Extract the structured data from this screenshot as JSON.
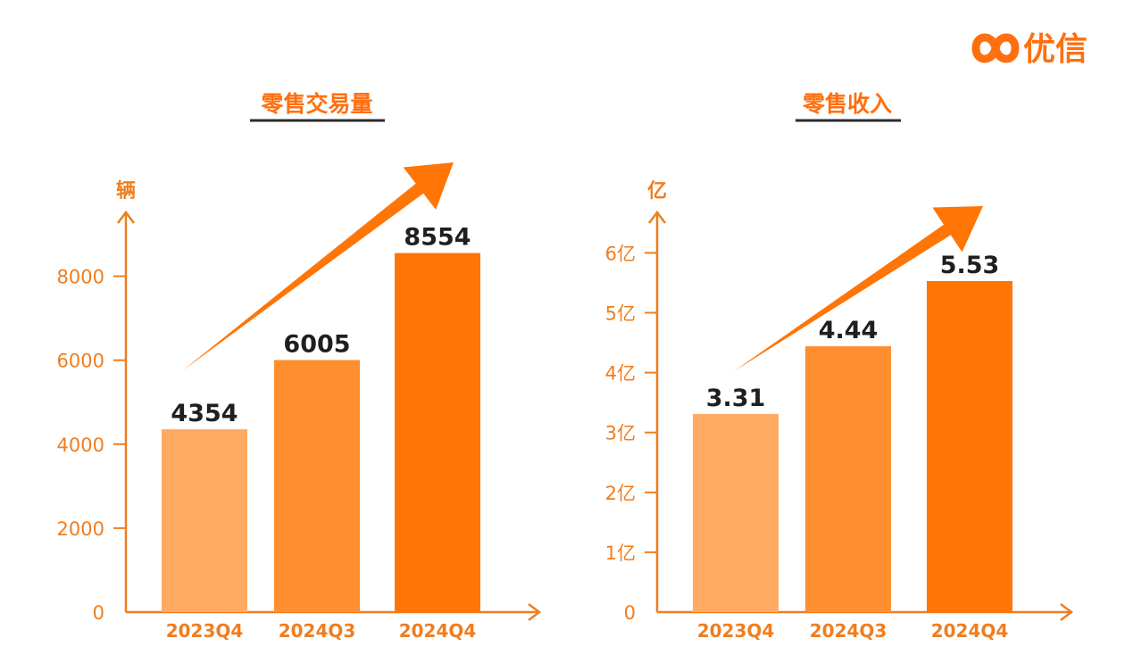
{
  "brand": {
    "name": "优信",
    "color": "#ff6f0f"
  },
  "colors": {
    "axis": "#f07d1f",
    "tick_text": "#f07d1f",
    "title_text": "#ff6f0f",
    "underline": "#2b2b2b",
    "value_text": "#1f1f1f",
    "arrow": "#ff7506"
  },
  "chart_data": [
    {
      "type": "bar",
      "title": "零售交易量",
      "ylabel": "辆",
      "xlabel": "",
      "categories": [
        "2023Q4",
        "2024Q3",
        "2024Q4"
      ],
      "values": [
        4354,
        6005,
        8554
      ],
      "value_labels": [
        "4354",
        "6005",
        "8554"
      ],
      "bar_colors": [
        "#ffa963",
        "#ff8e31",
        "#ff7506"
      ],
      "ylim": [
        0,
        9900
      ],
      "yticks": [
        0,
        2000,
        4000,
        6000,
        8000
      ],
      "ytick_labels": [
        "0",
        "2000",
        "4000",
        "6000",
        "8000"
      ],
      "trend_arrow": true,
      "grid": false,
      "legend": "none"
    },
    {
      "type": "bar",
      "title": "零售收入",
      "ylabel": "亿",
      "xlabel": "",
      "categories": [
        "2023Q4",
        "2024Q3",
        "2024Q4"
      ],
      "values": [
        3.31,
        4.44,
        5.53
      ],
      "value_labels": [
        "3.31",
        "4.44",
        "5.53"
      ],
      "bar_colors": [
        "#ffa963",
        "#ff8e31",
        "#ff7506"
      ],
      "ylim": [
        0,
        6.9
      ],
      "yticks": [
        0,
        1,
        2,
        3,
        4,
        5,
        6
      ],
      "ytick_labels": [
        "0",
        "1亿",
        "2亿",
        "3亿",
        "4亿",
        "5亿",
        "6亿"
      ],
      "trend_arrow": true,
      "grid": false,
      "legend": "none"
    }
  ]
}
